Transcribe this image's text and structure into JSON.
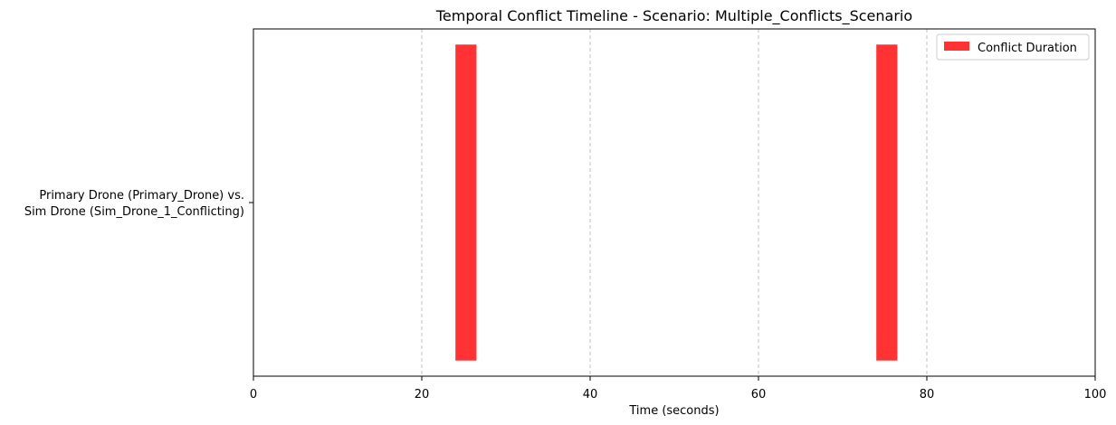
{
  "chart_data": {
    "type": "bar",
    "orientation": "horizontal",
    "title": "Temporal Conflict Timeline - Scenario: Multiple_Conflicts_Scenario",
    "xlabel": "Time (seconds)",
    "ylabel": "",
    "xlim": [
      0,
      100
    ],
    "xticks": [
      0,
      20,
      40,
      60,
      80,
      100
    ],
    "grid": "x-dashed",
    "legend_position": "top-right",
    "categories": [
      [
        "Primary Drone (Primary_Drone) vs.",
        "Sim Drone (Sim_Drone_1_Conflicting)"
      ]
    ],
    "series": [
      {
        "name": "Conflict Duration",
        "color": "#ff3333",
        "intervals": [
          {
            "category_index": 0,
            "start": 24,
            "end": 26.5
          },
          {
            "category_index": 0,
            "start": 74,
            "end": 76.5
          }
        ]
      }
    ]
  }
}
